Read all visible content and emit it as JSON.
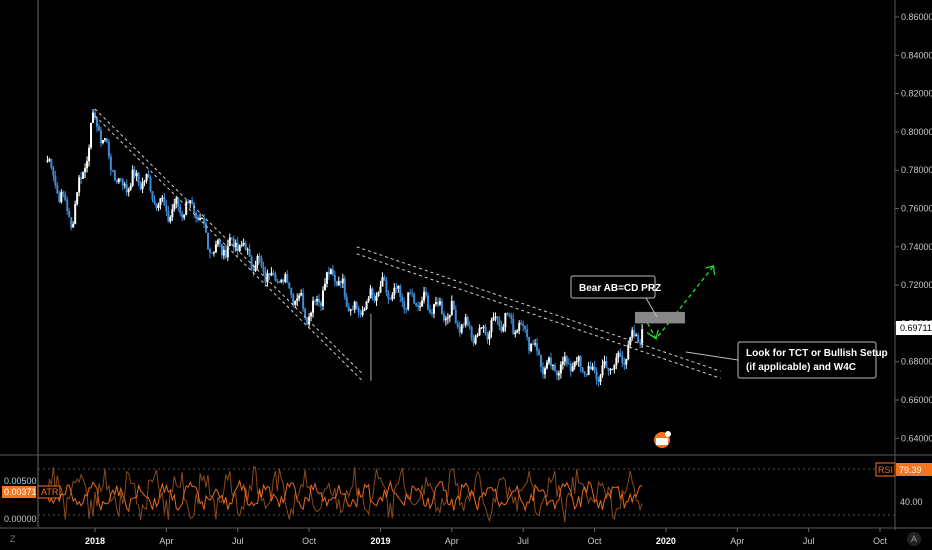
{
  "colors": {
    "background": "#000000",
    "candle_up": "#ffffff",
    "candle_down": "#3d8cd6",
    "trendline": "#cfcfcf",
    "projection": "#22dd22",
    "prz_box": "#888888",
    "atr_line": "#e8691c",
    "rsi_line": "#8a4a1c",
    "price_label_bg": "#ffffff",
    "indicator_badge": "#f7731c"
  },
  "price_axis": {
    "ticks": [
      "0.86000",
      "0.84000",
      "0.82000",
      "0.80000",
      "0.78000",
      "0.76000",
      "0.74000",
      "0.72000",
      "0.70000",
      "0.68000",
      "0.66000",
      "0.64000"
    ],
    "current_price_label": "0.69711"
  },
  "time_axis": {
    "ticks": [
      {
        "label": "2018",
        "bold": true
      },
      {
        "label": "Apr",
        "bold": false
      },
      {
        "label": "Jul",
        "bold": false
      },
      {
        "label": "Oct",
        "bold": false
      },
      {
        "label": "2019",
        "bold": true
      },
      {
        "label": "Apr",
        "bold": false
      },
      {
        "label": "Jul",
        "bold": false
      },
      {
        "label": "Oct",
        "bold": false
      },
      {
        "label": "2020",
        "bold": true
      },
      {
        "label": "Apr",
        "bold": false
      },
      {
        "label": "Jul",
        "bold": false
      },
      {
        "label": "Oct",
        "bold": false
      }
    ],
    "corner_left": "Z",
    "corner_right": "A"
  },
  "indicators": {
    "atr": {
      "name": "ATR",
      "value": "0.00371",
      "ticks": [
        "0.00500",
        "0.00000"
      ]
    },
    "rsi": {
      "name": "RSI",
      "value": "79.39",
      "ticks": [
        "40.00"
      ]
    }
  },
  "annotations": {
    "prz_label": "Bear AB=CD PRZ",
    "setup_line1": "Look for TCT or Bullish Setup",
    "setup_line2": "(if applicable) and W4C"
  },
  "chart_data": {
    "type": "candlestick",
    "title": "",
    "ylim": [
      0.63,
      0.87
    ],
    "x_range": [
      "2017-11",
      "2020-12"
    ],
    "key_points": [
      {
        "date": "2017-11",
        "price": 0.785
      },
      {
        "date": "2017-12",
        "price": 0.753
      },
      {
        "date": "2018-01",
        "price": 0.808
      },
      {
        "date": "2018-02",
        "price": 0.772
      },
      {
        "date": "2018-03",
        "price": 0.776
      },
      {
        "date": "2018-04",
        "price": 0.758
      },
      {
        "date": "2018-05",
        "price": 0.762
      },
      {
        "date": "2018-06",
        "price": 0.738
      },
      {
        "date": "2018-07",
        "price": 0.742
      },
      {
        "date": "2018-08",
        "price": 0.728
      },
      {
        "date": "2018-09",
        "price": 0.722
      },
      {
        "date": "2018-10",
        "price": 0.705
      },
      {
        "date": "2018-11",
        "price": 0.727
      },
      {
        "date": "2018-12",
        "price": 0.705
      },
      {
        "date": "2019-01",
        "price": 0.718
      },
      {
        "date": "2019-02",
        "price": 0.712
      },
      {
        "date": "2019-03",
        "price": 0.71
      },
      {
        "date": "2019-04",
        "price": 0.705
      },
      {
        "date": "2019-05",
        "price": 0.693
      },
      {
        "date": "2019-06",
        "price": 0.703
      },
      {
        "date": "2019-07",
        "price": 0.698
      },
      {
        "date": "2019-08",
        "price": 0.675
      },
      {
        "date": "2019-09",
        "price": 0.68
      },
      {
        "date": "2019-10",
        "price": 0.673
      },
      {
        "date": "2019-11",
        "price": 0.68
      },
      {
        "date": "2019-12",
        "price": 0.697
      }
    ],
    "trendlines": [
      {
        "from": {
          "date": "2018-01",
          "price": 0.812
        },
        "to": {
          "date": "2018-12",
          "price": 0.673
        }
      },
      {
        "from": {
          "date": "2018-12",
          "price": 0.74
        },
        "to": {
          "date": "2020-03",
          "price": 0.675
        }
      }
    ],
    "prz_zone": {
      "from": "2019-12",
      "to": "2020-01",
      "price_low": 0.7,
      "price_high": 0.706
    },
    "projection": {
      "from": {
        "date": "2019-12",
        "price": 0.698
      },
      "to": {
        "date": "2020-03",
        "price": 0.73
      }
    }
  }
}
